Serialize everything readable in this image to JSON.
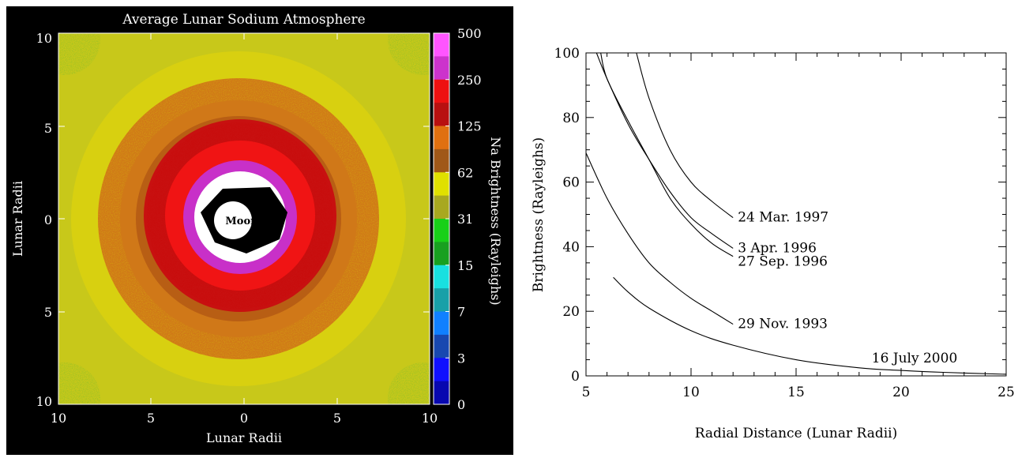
{
  "chart_data": [
    {
      "type": "heatmap",
      "title": "Average Lunar Sodium Atmosphere",
      "xlabel": "Lunar Radii",
      "ylabel": "Lunar Radii",
      "x_ticks": [
        "10",
        "5",
        "0",
        "5",
        "10"
      ],
      "y_ticks": [
        "10",
        "5",
        "0",
        "5",
        "10"
      ],
      "center_label": "Moon",
      "colorbar": {
        "label": "Na Brightness (Rayleighs)",
        "ticks": [
          "500",
          "250",
          "125",
          "62",
          "31",
          "15",
          "7",
          "3",
          "0"
        ],
        "colors": [
          "#ff55ff",
          "#cc33cc",
          "#ee1111",
          "#b81010",
          "#e07010",
          "#a05818",
          "#e0e000",
          "#a8a820",
          "#18d018",
          "#18a020",
          "#18e0e0",
          "#18a0a8",
          "#1080ff",
          "#1848b0",
          "#1010ff",
          "#0808b0"
        ]
      },
      "colors": {
        "background": "#000000",
        "outer": "#c8c81a",
        "yellow_band": "#d8d010",
        "orange_band": "#d07818",
        "brown_band": "#b85e14",
        "red_band": "#c81010",
        "inner_red": "#f01414",
        "magenta_band": "#c830c8",
        "white_core": "#ffffff",
        "shadow": "#000000",
        "corner_green": "#3cb43c"
      }
    },
    {
      "type": "line",
      "xlabel": "Radial Distance (Lunar Radii)",
      "ylabel": "Brightness (Rayleighs)",
      "xlim": [
        5,
        25
      ],
      "ylim": [
        0,
        100
      ],
      "x_ticks": [
        5,
        10,
        15,
        20,
        25
      ],
      "y_ticks": [
        0,
        20,
        40,
        60,
        80,
        100
      ],
      "series": [
        {
          "name": "24 Mar. 1997",
          "x": [
            7.4,
            8,
            9,
            10,
            11,
            12
          ],
          "y": [
            100,
            86,
            70,
            60,
            54,
            49
          ]
        },
        {
          "name": "3 Apr. 1996",
          "x": [
            5.5,
            6,
            7,
            8,
            9,
            10,
            11,
            12
          ],
          "y": [
            100,
            92,
            78,
            67,
            57,
            49,
            44,
            39.5
          ]
        },
        {
          "name": "27 Sep. 1996",
          "x": [
            5.7,
            6,
            7,
            8,
            9,
            10,
            11,
            12
          ],
          "y": [
            100,
            92,
            79,
            67,
            55,
            47,
            41,
            37
          ]
        },
        {
          "name": "29 Nov. 1993",
          "x": [
            5,
            6,
            7,
            8,
            9,
            10,
            11,
            12
          ],
          "y": [
            69,
            55,
            44,
            35,
            29,
            24,
            20,
            16
          ]
        },
        {
          "name": "16 July 2000",
          "x": [
            6.3,
            7,
            8,
            10,
            12,
            15,
            18,
            20,
            22,
            25
          ],
          "y": [
            30.5,
            26,
            21,
            14,
            9.5,
            5,
            2.5,
            1.7,
            1.1,
            0.5
          ]
        }
      ],
      "grid": false
    }
  ]
}
